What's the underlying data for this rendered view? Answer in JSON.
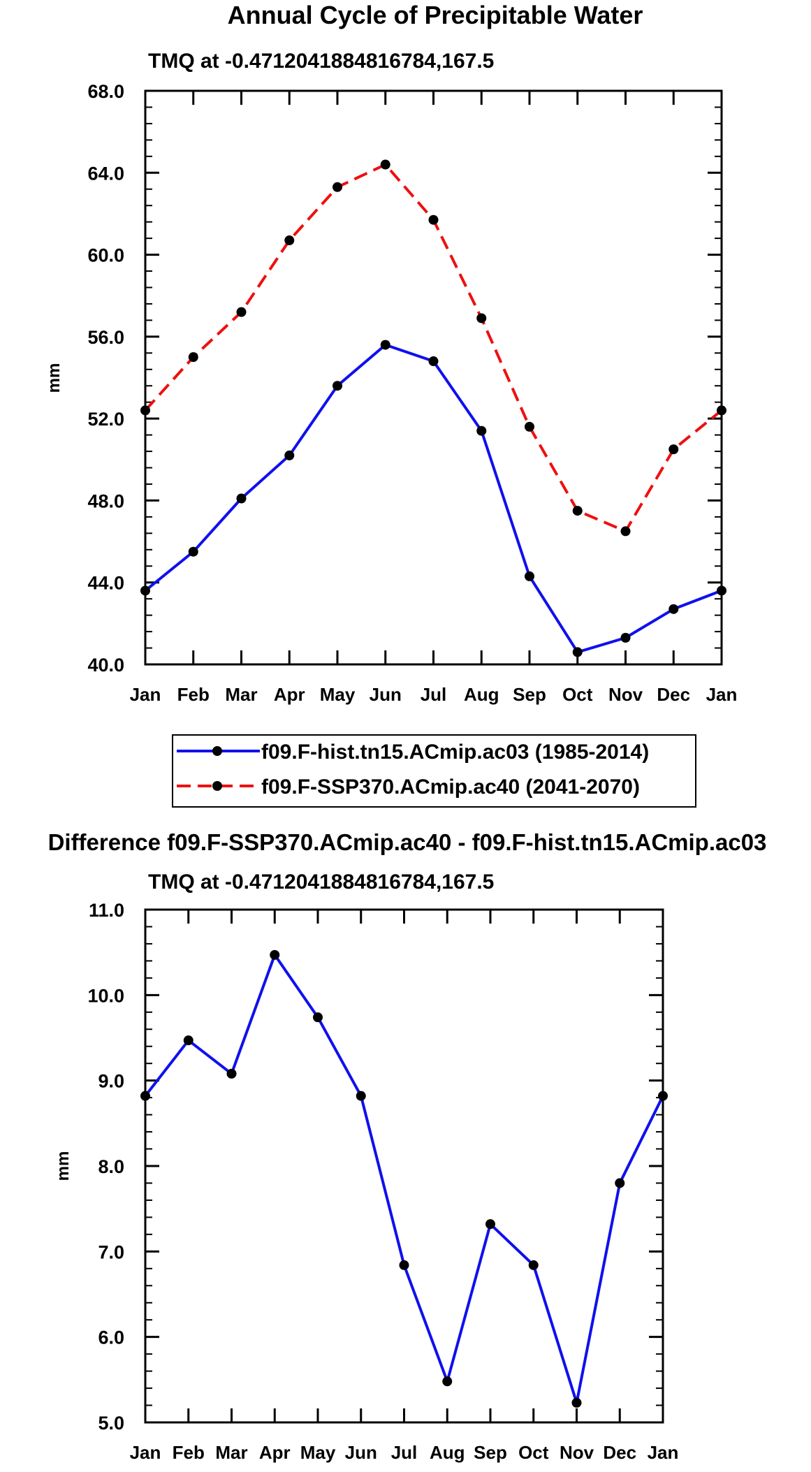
{
  "chart_data": [
    {
      "type": "line",
      "title": "Annual Cycle of Precipitable Water",
      "subtitle": "TMQ at -0.4712041884816784,167.5",
      "xlabel": "",
      "ylabel": "mm",
      "categories": [
        "Jan",
        "Feb",
        "Mar",
        "Apr",
        "May",
        "Jun",
        "Jul",
        "Aug",
        "Sep",
        "Oct",
        "Nov",
        "Dec",
        "Jan"
      ],
      "ylim": [
        40.0,
        68.0
      ],
      "yticks": [
        "40.0",
        "44.0",
        "48.0",
        "52.0",
        "56.0",
        "60.0",
        "64.0",
        "68.0"
      ],
      "grid": false,
      "legend_position": "bottom",
      "series": [
        {
          "name": "f09.F-hist.tn15.ACmip.ac03 (1985-2014)",
          "color": "#1010ee",
          "dash": "solid",
          "values": [
            43.6,
            45.5,
            48.1,
            50.2,
            53.6,
            55.6,
            54.8,
            51.4,
            44.3,
            40.6,
            41.3,
            42.7,
            43.6
          ]
        },
        {
          "name": "f09.F-SSP370.ACmip.ac40 (2041-2070)",
          "color": "#ee1010",
          "dash": "dashed",
          "values": [
            52.4,
            55.0,
            57.2,
            60.7,
            63.3,
            64.4,
            61.7,
            56.9,
            51.6,
            47.5,
            46.5,
            50.5,
            52.4
          ]
        }
      ]
    },
    {
      "type": "line",
      "title": "Difference f09.F-SSP370.ACmip.ac40 - f09.F-hist.tn15.ACmip.ac03",
      "subtitle": "TMQ at -0.4712041884816784,167.5",
      "xlabel": "",
      "ylabel": "mm",
      "categories": [
        "Jan",
        "Feb",
        "Mar",
        "Apr",
        "May",
        "Jun",
        "Jul",
        "Aug",
        "Sep",
        "Oct",
        "Nov",
        "Dec",
        "Jan"
      ],
      "ylim": [
        5.0,
        11.0
      ],
      "yticks": [
        "5.0",
        "6.0",
        "7.0",
        "8.0",
        "9.0",
        "10.0",
        "11.0"
      ],
      "grid": false,
      "series": [
        {
          "name": "Difference",
          "color": "#1010ee",
          "dash": "solid",
          "values": [
            8.82,
            9.47,
            9.08,
            10.47,
            9.74,
            8.82,
            6.84,
            5.48,
            7.32,
            6.84,
            5.23,
            7.8,
            8.82
          ]
        }
      ]
    }
  ]
}
